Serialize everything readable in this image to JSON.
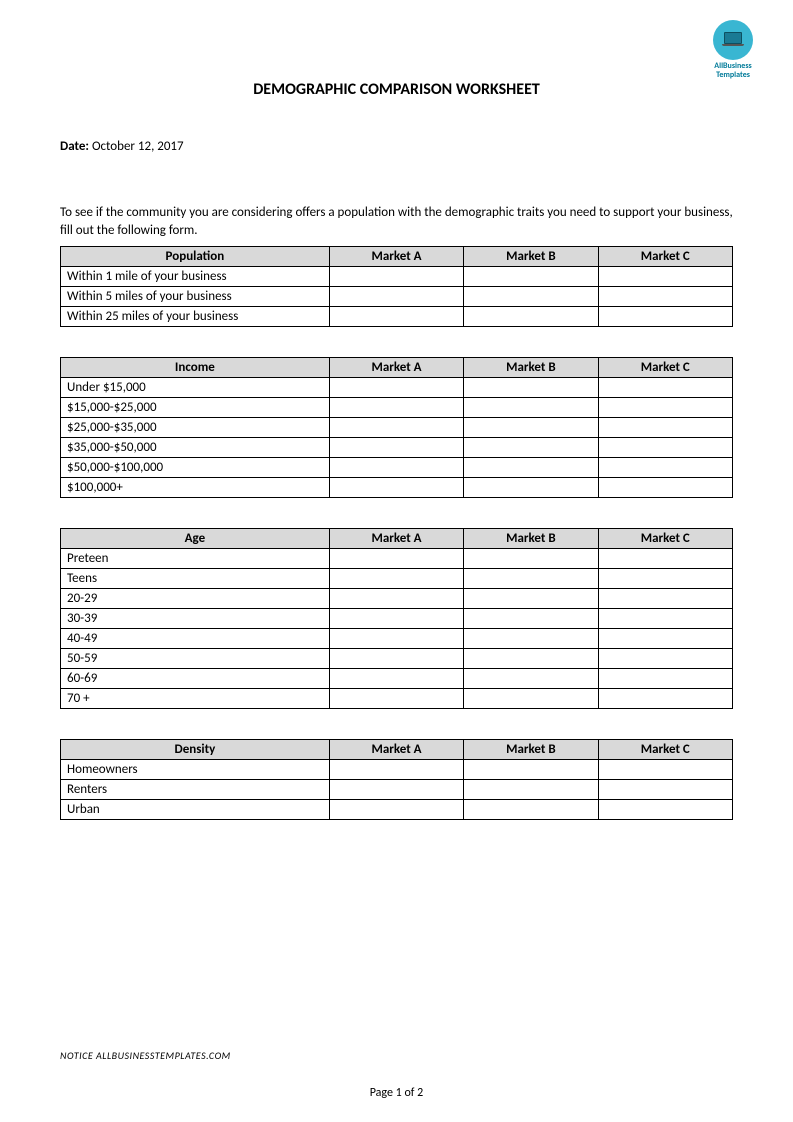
{
  "logo": {
    "text_line1": "AllBusiness",
    "text_line2": "Templates",
    "circle_color": "#39b6d2",
    "text_color": "#007a99"
  },
  "title": "DEMOGRAPHIC COMPARISON WORKSHEET",
  "date_label": "Date:",
  "date_value": "October 12, 2017",
  "intro": "To see if the community you are considering offers a population with the demographic traits you need to support your business, fill out the following form.",
  "columns": {
    "market_a": "Market A",
    "market_b": "Market B",
    "market_c": "Market C"
  },
  "tables": {
    "population": {
      "header": "Population",
      "rows": [
        "Within 1 mile of your business",
        "Within 5 miles of your business",
        "Within 25 miles of your business"
      ],
      "tall_rows": [
        0,
        1
      ]
    },
    "income": {
      "header": "Income",
      "rows": [
        "Under $15,000",
        "$15,000-$25,000",
        "$25,000-$35,000",
        "$35,000-$50,000",
        "$50,000-$100,000",
        "$100,000+"
      ]
    },
    "age": {
      "header": "Age",
      "rows": [
        "Preteen",
        "Teens",
        "20-29",
        "30-39",
        "40-49",
        "50-59",
        "60-69",
        "70 +"
      ]
    },
    "density": {
      "header": "Density",
      "rows": [
        "Homeowners",
        "Renters",
        "Urban"
      ]
    }
  },
  "footer_notice": "NOTICE  ALLBUSINESSTEMPLATES.COM",
  "page_num": "Page 1 of 2",
  "styles": {
    "header_bg": "#d9d9d9",
    "border_color": "#000000",
    "font_family": "Calibri",
    "title_fontsize": 16,
    "body_fontsize": 13
  }
}
